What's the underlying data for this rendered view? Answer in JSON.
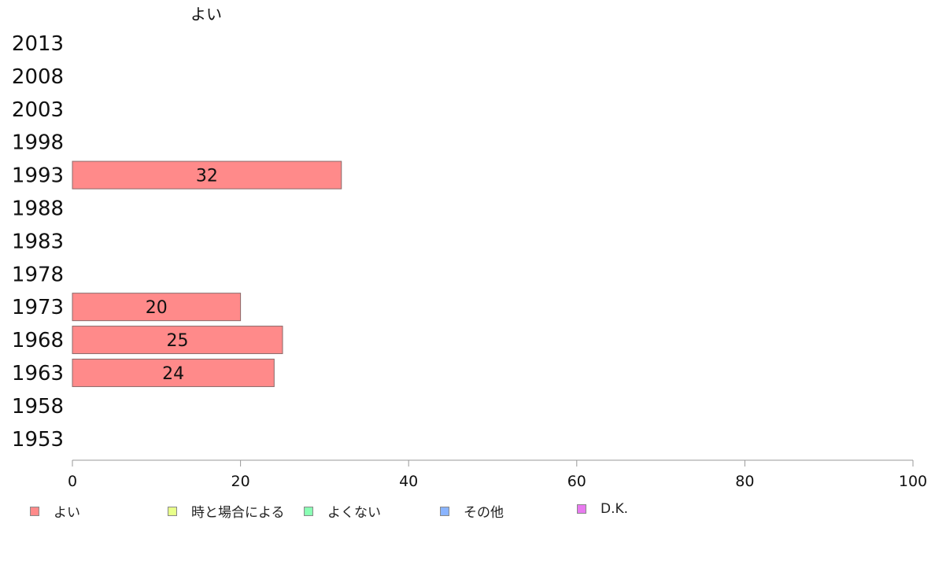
{
  "chart_data": {
    "type": "bar",
    "orientation": "horizontal",
    "title": "よい",
    "categories": [
      "2013",
      "2008",
      "2003",
      "1998",
      "1993",
      "1988",
      "1983",
      "1978",
      "1973",
      "1968",
      "1963",
      "1958",
      "1953"
    ],
    "series": [
      {
        "name": "よい",
        "values": [
          null,
          null,
          null,
          null,
          32,
          null,
          null,
          null,
          20,
          25,
          24,
          null,
          null
        ],
        "color": "#ff8a8a"
      }
    ],
    "xlim": [
      0,
      100
    ],
    "x_ticks": [
      "0",
      "20",
      "40",
      "60",
      "80",
      "100"
    ],
    "grid": false,
    "legend_position": "bottom"
  },
  "legend": {
    "items": [
      {
        "label": "よい",
        "color": "#ff8a8a"
      },
      {
        "label": "時と場合による",
        "color": "#e8ff8a"
      },
      {
        "label": "よくない",
        "color": "#8affb4"
      },
      {
        "label": "その他",
        "color": "#8ab4ff"
      },
      {
        "label": "D.K.",
        "color": "#e87aef"
      }
    ]
  }
}
